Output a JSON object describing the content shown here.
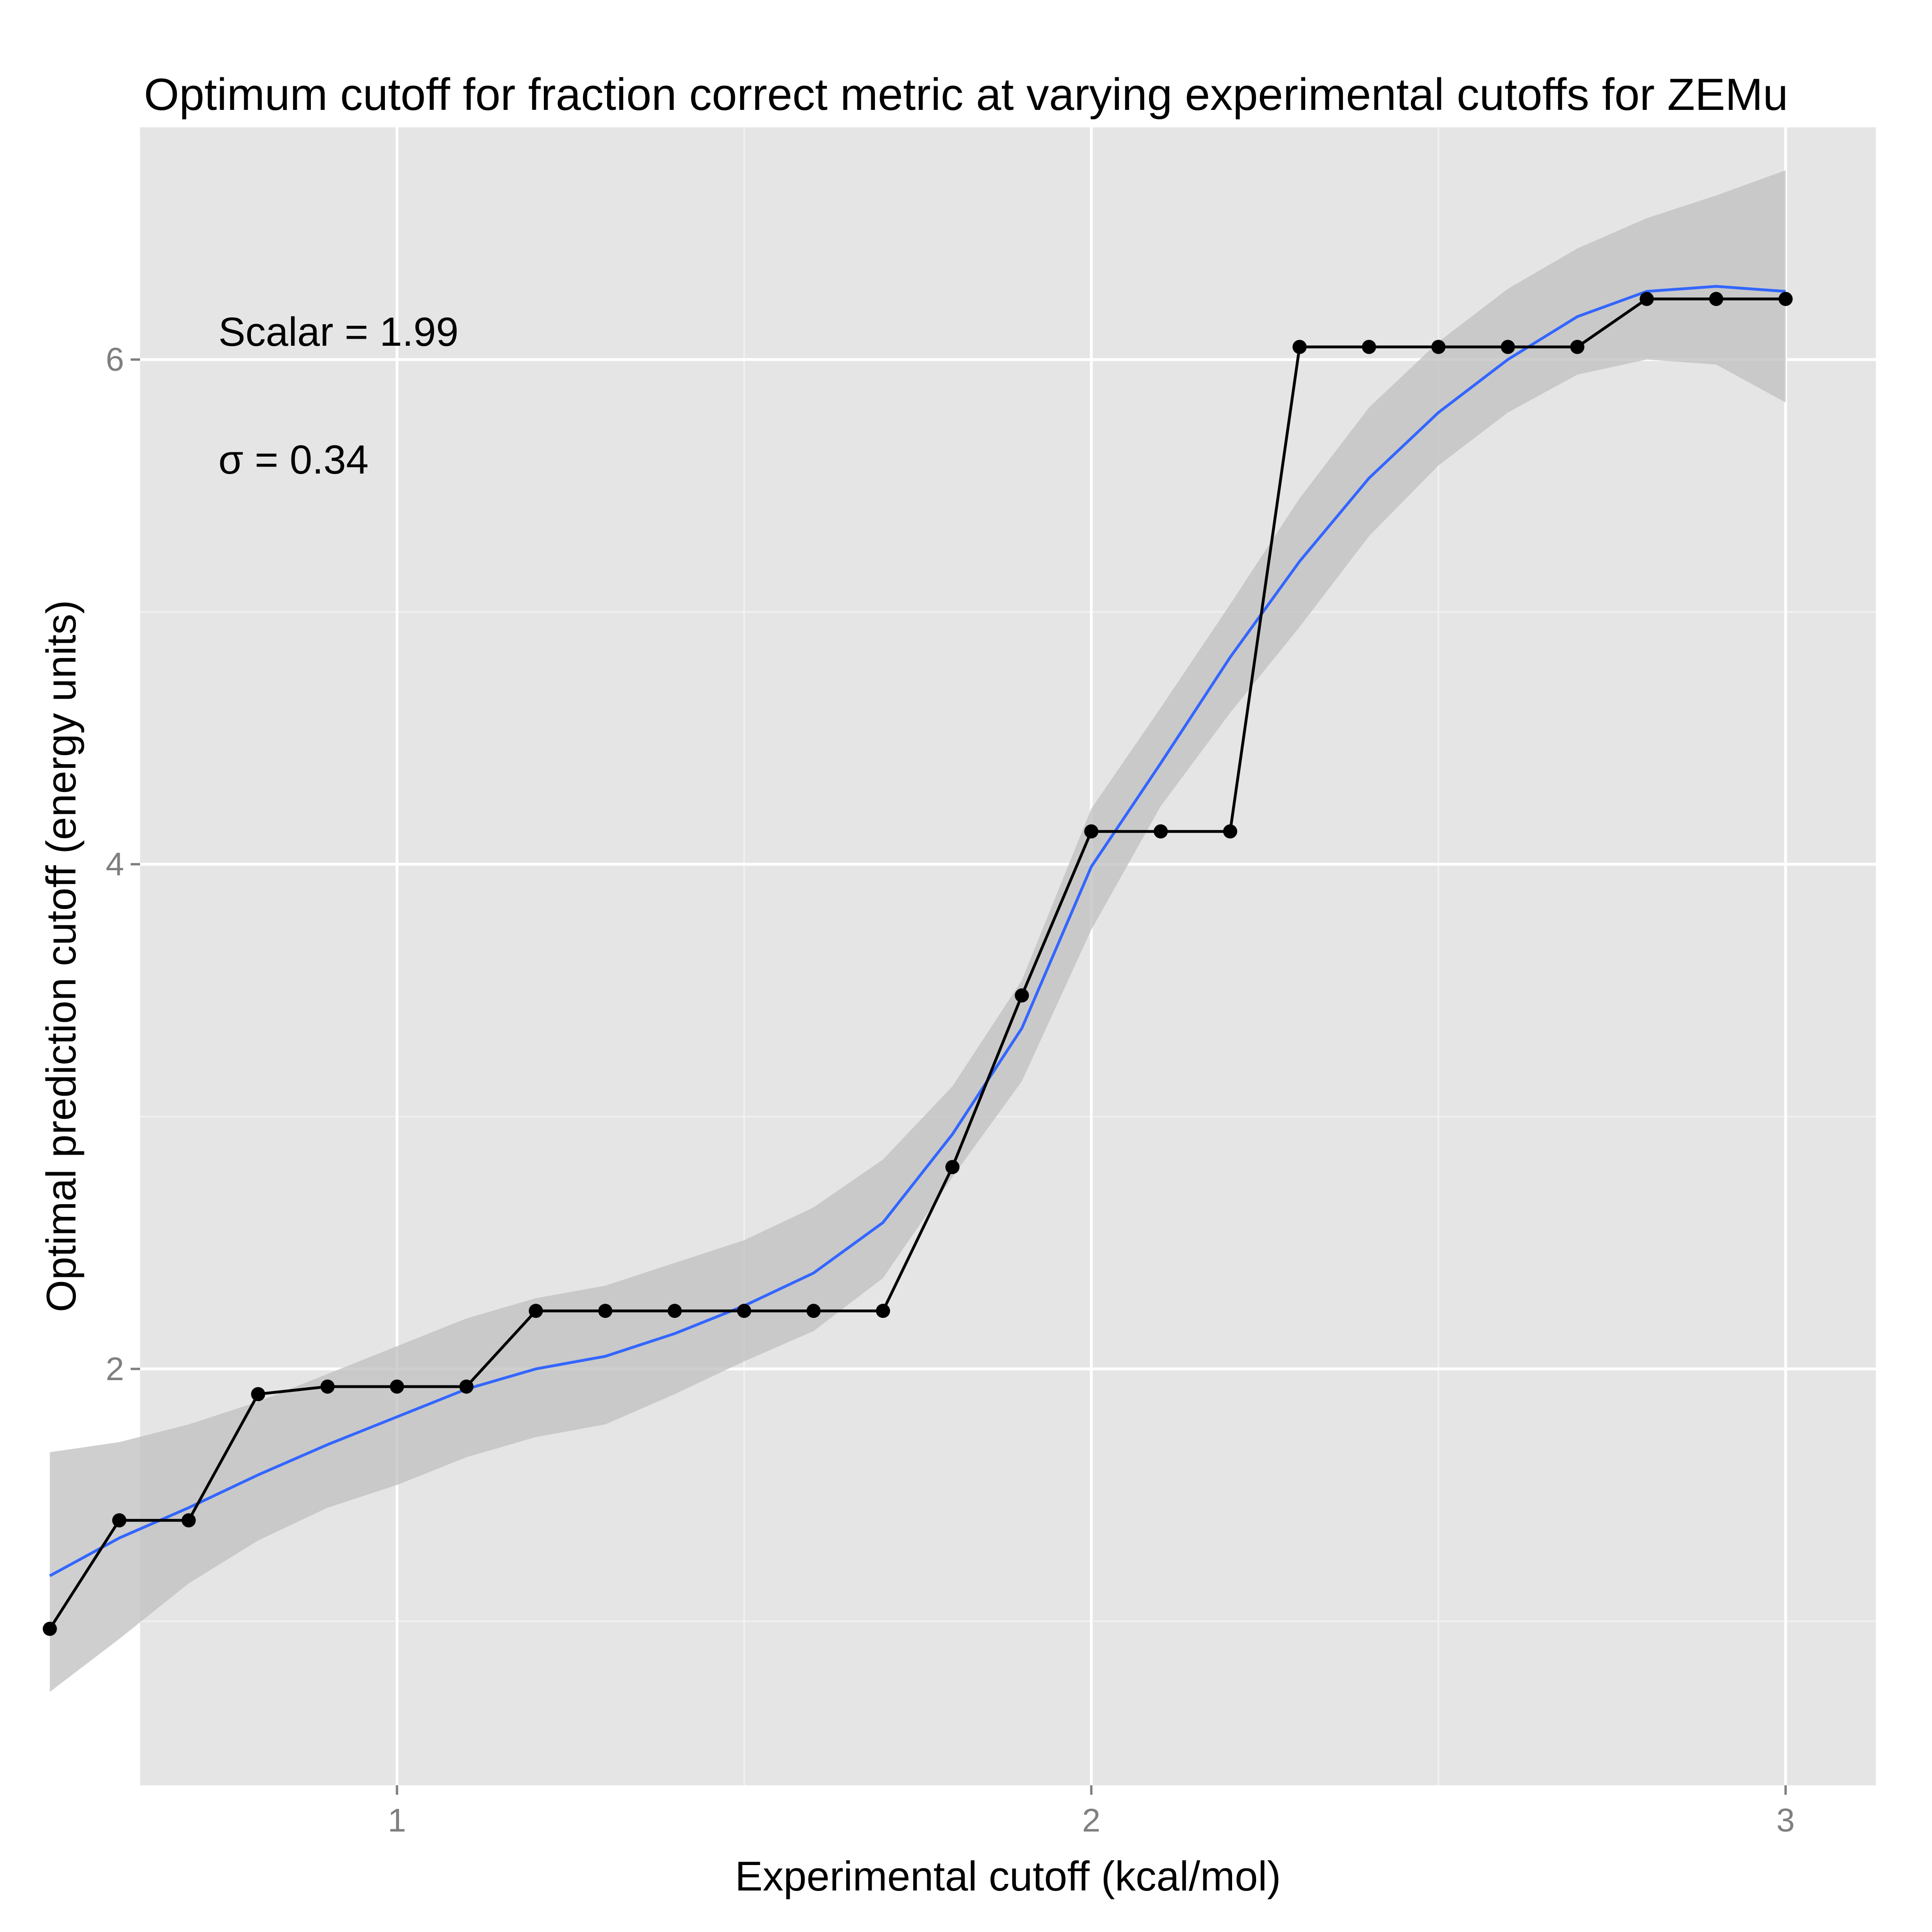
{
  "chart_data": {
    "type": "line",
    "title": "Optimum cutoff for fraction correct metric at varying experimental cutoffs for ZEMu",
    "xlabel": "Experimental cutoff (kcal/mol)",
    "ylabel": "Optimal prediction cutoff (energy units)",
    "xlim": [
      0.63,
      3.13
    ],
    "ylim": [
      0.35,
      6.92
    ],
    "x_ticks": [
      1,
      2,
      3
    ],
    "y_ticks": [
      2,
      4,
      6
    ],
    "x_tick_labels": [
      "1",
      "2",
      "3"
    ],
    "y_tick_labels": [
      "2",
      "4",
      "6"
    ],
    "grid": true,
    "annotations": [
      "Scalar = 1.99",
      "σ = 0.34"
    ],
    "series": [
      {
        "x": [
          0.5,
          0.6,
          0.7,
          0.8,
          0.9,
          1.0,
          1.1,
          1.2,
          1.3,
          1.4,
          1.5,
          1.6,
          1.7,
          1.8,
          1.9,
          2.0,
          2.1,
          2.2,
          2.3,
          2.4,
          2.5,
          2.6,
          2.7,
          2.8,
          2.9,
          3.0
        ],
        "y": [
          0.97,
          1.4,
          1.4,
          1.9,
          1.93,
          1.93,
          1.93,
          2.23,
          2.23,
          2.23,
          2.23,
          2.23,
          2.23,
          2.8,
          3.48,
          4.13,
          4.13,
          4.13,
          6.05,
          6.05,
          6.05,
          6.05,
          6.05,
          6.24,
          6.24,
          6.24
        ]
      }
    ],
    "smooth_fit": {
      "x": [
        0.5,
        0.6,
        0.7,
        0.8,
        0.9,
        1.0,
        1.1,
        1.2,
        1.3,
        1.4,
        1.5,
        1.6,
        1.7,
        1.8,
        1.9,
        2.0,
        2.1,
        2.2,
        2.3,
        2.4,
        2.5,
        2.6,
        2.7,
        2.8,
        2.9,
        3.0
      ],
      "y": [
        1.18,
        1.33,
        1.45,
        1.58,
        1.7,
        1.81,
        1.92,
        2.0,
        2.05,
        2.14,
        2.25,
        2.38,
        2.58,
        2.93,
        3.35,
        3.99,
        4.4,
        4.82,
        5.2,
        5.53,
        5.79,
        6.0,
        6.17,
        6.27,
        6.29,
        6.27
      ],
      "ci_low": [
        0.72,
        0.93,
        1.15,
        1.32,
        1.45,
        1.54,
        1.65,
        1.73,
        1.78,
        1.9,
        2.03,
        2.15,
        2.36,
        2.76,
        3.14,
        3.74,
        4.23,
        4.6,
        4.94,
        5.3,
        5.58,
        5.79,
        5.94,
        6.0,
        5.98,
        5.83
      ],
      "ci_high": [
        1.67,
        1.71,
        1.78,
        1.87,
        1.98,
        2.09,
        2.2,
        2.28,
        2.33,
        2.42,
        2.51,
        2.64,
        2.83,
        3.12,
        3.54,
        4.22,
        4.62,
        5.03,
        5.45,
        5.81,
        6.07,
        6.28,
        6.44,
        6.56,
        6.65,
        6.75
      ]
    }
  }
}
